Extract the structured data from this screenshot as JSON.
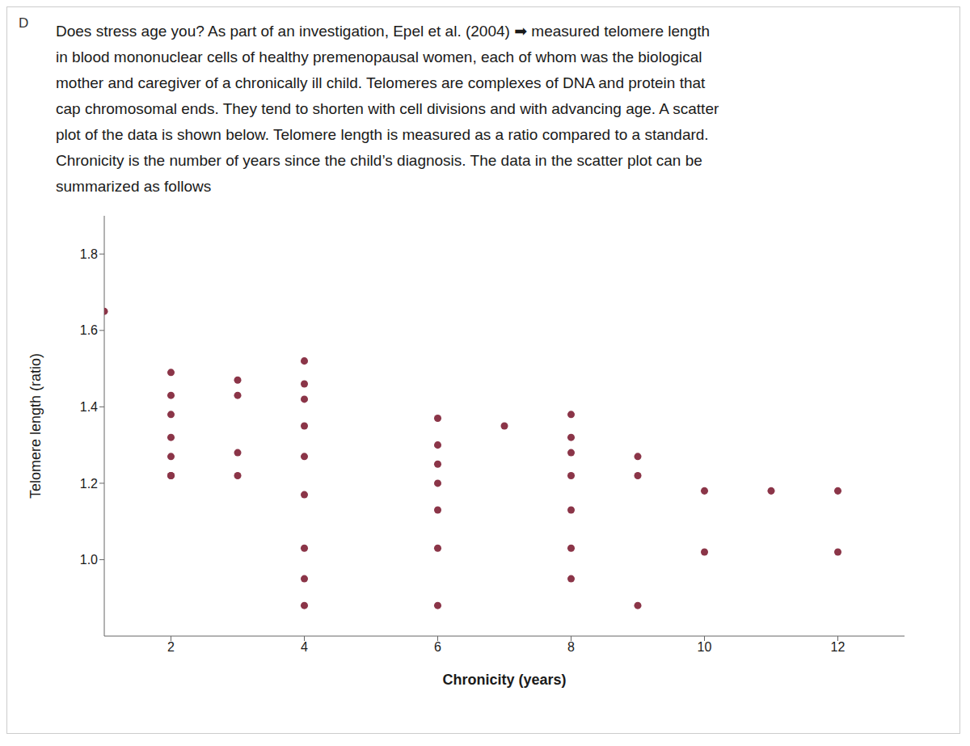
{
  "chart_data": {
    "type": "scatter",
    "title": [
      "Does stress age you? As part of an investigation, Epel et al. (2004) ➡  measured telomere length",
      "in blood mononuclear cells of healthy premenopausal women, each of whom was the biological",
      "mother and caregiver of a chronically ill child. Telomeres are complexes of DNA and protein that",
      "cap chromosomal ends. They tend to shorten with cell divisions and with advancing age. A scatter",
      "plot of the data is shown below. Telomere length is measured as a ratio compared to a standard.",
      "Chronicity is the number of years since the child’s diagnosis. The data in the scatter plot can be",
      "summarized as follows"
    ],
    "annotations": [
      "D"
    ],
    "x_label": "Chronicity (years)",
    "y_label": "Telomere length (ratio)",
    "color": "#8B3548",
    "x": [
      1,
      2,
      2,
      2,
      2,
      2,
      2,
      2,
      3,
      3,
      3,
      3,
      4,
      4,
      4,
      4,
      4,
      4,
      4,
      4,
      4,
      6,
      6,
      6,
      6,
      6,
      6,
      6,
      7,
      8,
      8,
      8,
      8,
      8,
      8,
      8,
      9,
      9,
      9,
      10,
      10,
      11,
      12,
      12
    ],
    "values": [
      1.65,
      1.49,
      1.43,
      1.38,
      1.32,
      1.27,
      1.22,
      1.22,
      1.47,
      1.43,
      1.28,
      1.22,
      1.52,
      1.46,
      1.42,
      1.35,
      1.27,
      1.17,
      1.03,
      0.95,
      0.88,
      1.37,
      1.3,
      1.25,
      1.2,
      1.13,
      1.03,
      0.88,
      1.35,
      1.38,
      1.32,
      1.28,
      1.22,
      1.13,
      1.03,
      0.95,
      1.27,
      1.22,
      0.88,
      1.18,
      1.02,
      1.18,
      1.18,
      1.02
    ],
    "xlim": [
      1.0,
      13.0
    ],
    "ylim": [
      0.8,
      1.9
    ],
    "xticks": [
      2,
      4,
      6,
      8,
      10,
      12
    ],
    "yticks": [
      {
        "value": 1.0,
        "label": "1.0"
      },
      1.2,
      1.4,
      1.6,
      1.8
    ],
    "grid": false
  }
}
